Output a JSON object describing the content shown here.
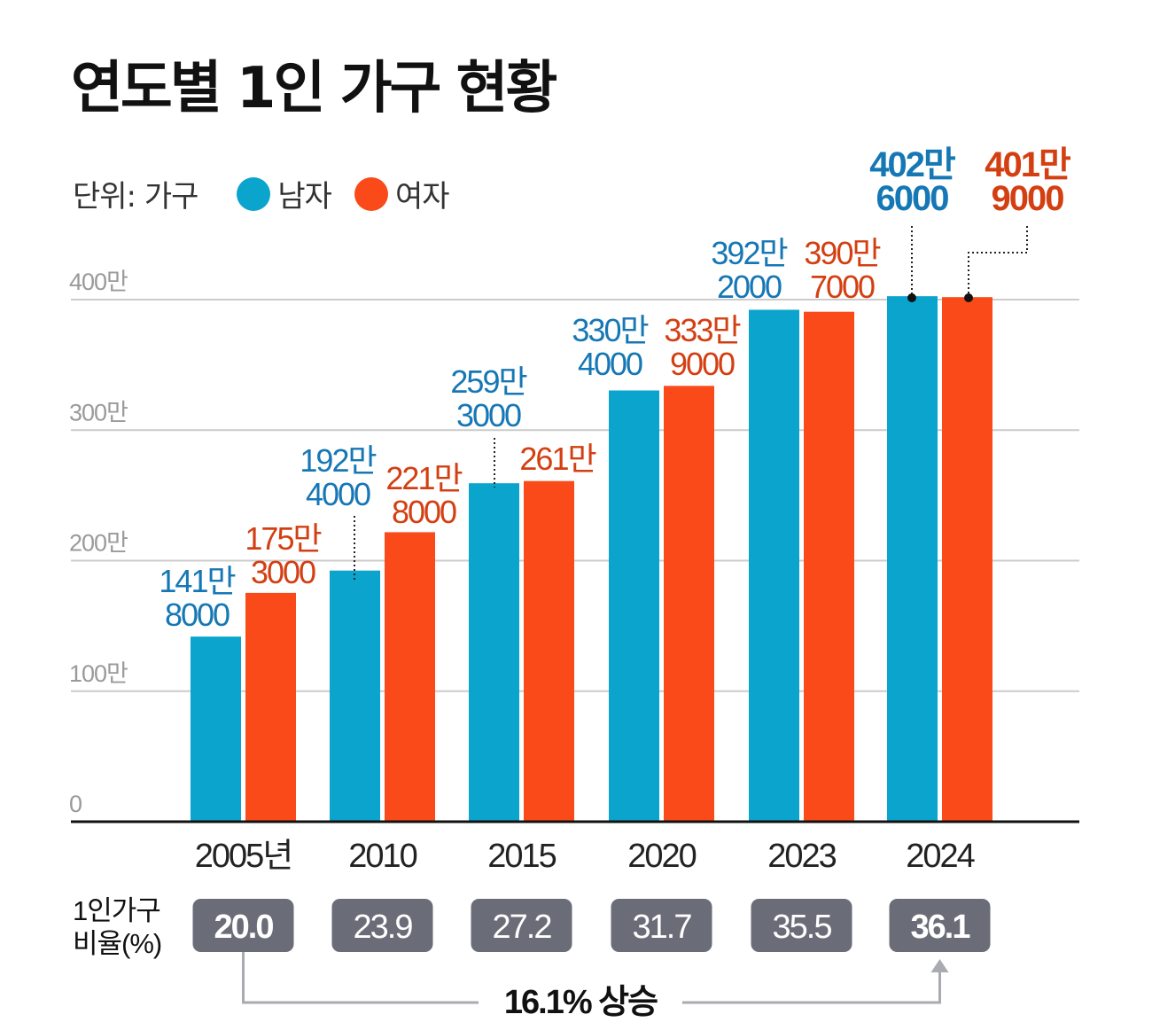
{
  "title": "연도별 1인 가구 현황",
  "legend": {
    "unit_label": "단위: 가구",
    "male": "남자",
    "female": "여자"
  },
  "colors": {
    "male": "#0aa4cc",
    "female": "#fb4a19",
    "male_text": "#1677b5",
    "female_text": "#d43f12",
    "grid": "#cccccc",
    "badge": "#6a6d78",
    "axis_label": "#9a9a9a"
  },
  "ratio": {
    "label_line1": "1인가구",
    "label_line2": "비율(%)",
    "values": [
      "20.0",
      "23.9",
      "27.2",
      "31.7",
      "35.5",
      "36.1"
    ],
    "increase_label": "16.1% 상승"
  },
  "chart_data": {
    "type": "bar",
    "title": "연도별 1인 가구 현황",
    "unit": "가구",
    "categories": [
      "2005년",
      "2010",
      "2015",
      "2020",
      "2023",
      "2024"
    ],
    "series": [
      {
        "name": "남자",
        "values": [
          1418000,
          1924000,
          2593000,
          3304000,
          3922000,
          4026000
        ],
        "labels": [
          [
            "141만",
            "8000"
          ],
          [
            "192만",
            "4000"
          ],
          [
            "259만",
            "3000"
          ],
          [
            "330만",
            "4000"
          ],
          [
            "392만",
            "2000"
          ],
          [
            "402만",
            "6000"
          ]
        ]
      },
      {
        "name": "여자",
        "values": [
          1753000,
          2218000,
          2610000,
          3339000,
          3907000,
          4019000
        ],
        "labels": [
          [
            "175만",
            "3000"
          ],
          [
            "221만",
            "8000"
          ],
          [
            "261만"
          ],
          [
            "333만",
            "9000"
          ],
          [
            "390만",
            "7000"
          ],
          [
            "401만",
            "9000"
          ]
        ]
      }
    ],
    "yticks": [
      "0",
      "100만",
      "200만",
      "300만",
      "400만"
    ],
    "ylim": [
      0,
      4000000
    ],
    "legend_position": "top-left"
  }
}
